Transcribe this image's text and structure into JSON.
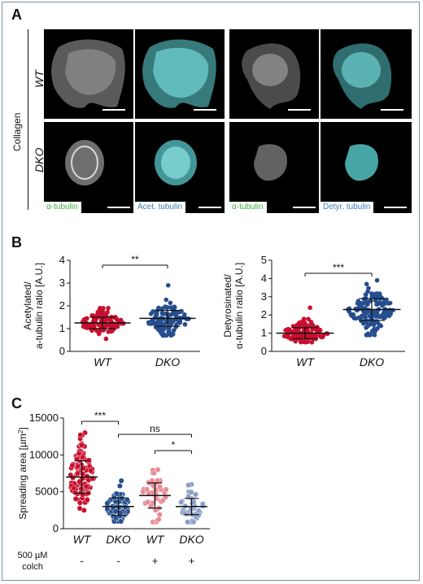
{
  "panels": {
    "a": {
      "label": "A"
    },
    "b": {
      "label": "B"
    },
    "c": {
      "label": "C"
    }
  },
  "panel_a": {
    "side_label": "Collagen",
    "row_labels": [
      "WT",
      "DKO"
    ],
    "captions": [
      "α-tubulin",
      "Acet. tubulin",
      "α-tubulin",
      "Detyr. tubulin"
    ],
    "colors": {
      "green_caption": "#3fae3f",
      "blue_caption": "#3a7fb8",
      "gray_stain": "#c9c9c9",
      "cyan_stain": "#5fd3d0"
    }
  },
  "chart_data": [
    {
      "type": "scatter",
      "id": "b-left",
      "ylabel": "Acetylated/ a-tubulin ratio [A.U.]",
      "ylabel_lines": [
        "Acetylated/",
        "a-tubulin ratio [A.U.]"
      ],
      "categories": [
        "WT",
        "DKO"
      ],
      "ylim": [
        0,
        4
      ],
      "yticks": [
        0,
        1,
        2,
        3,
        4
      ],
      "groups": [
        {
          "name": "WT",
          "color": "#c8102e",
          "mean": 1.25,
          "sd": 0.25,
          "min": 0.55,
          "max": 1.9,
          "n": 110
        },
        {
          "name": "DKO",
          "color": "#264e8f",
          "mean": 1.45,
          "sd": 0.35,
          "min": 0.7,
          "max": 2.9,
          "n": 110
        }
      ],
      "significance": [
        {
          "from": "WT",
          "to": "DKO",
          "label": "**"
        }
      ]
    },
    {
      "type": "scatter",
      "id": "b-right",
      "ylabel": "Detyrosinated/ α-tubulin ratio [A.U.]",
      "ylabel_lines": [
        "Detyrosinated/",
        "α-tubulin ratio [A.U.]"
      ],
      "categories": [
        "WT",
        "DKO"
      ],
      "ylim": [
        0,
        5
      ],
      "yticks": [
        0,
        1,
        2,
        3,
        4,
        5
      ],
      "groups": [
        {
          "name": "WT",
          "color": "#c8102e",
          "mean": 1.0,
          "sd": 0.3,
          "min": 0.5,
          "max": 2.4,
          "n": 120
        },
        {
          "name": "DKO",
          "color": "#264e8f",
          "mean": 2.3,
          "sd": 0.6,
          "min": 0.9,
          "max": 3.9,
          "n": 140
        }
      ],
      "significance": [
        {
          "from": "WT",
          "to": "DKO",
          "label": "***"
        }
      ]
    },
    {
      "type": "scatter",
      "id": "c",
      "ylabel": "Spreading area [µm²]",
      "ylabel_main": "Spreading area [µm",
      "ylabel_sup": "2",
      "ylabel_end": "]",
      "categories": [
        "WT",
        "DKO",
        "WT",
        "DKO"
      ],
      "ylim": [
        0,
        15000
      ],
      "yticks": [
        0,
        5000,
        10000,
        15000
      ],
      "groups": [
        {
          "name": "WT",
          "color": "#c8102e",
          "alpha": 1.0,
          "mean": 7000,
          "sd": 2200,
          "min": 2500,
          "max": 13000,
          "n": 110
        },
        {
          "name": "DKO",
          "color": "#264e8f",
          "alpha": 1.0,
          "mean": 3000,
          "sd": 1200,
          "min": 1000,
          "max": 6500,
          "n": 90
        },
        {
          "name": "WT",
          "color": "#e98a94",
          "alpha": 1.0,
          "mean": 4500,
          "sd": 1700,
          "min": 900,
          "max": 8000,
          "n": 45
        },
        {
          "name": "DKO",
          "color": "#8a9fc8",
          "alpha": 1.0,
          "mean": 3000,
          "sd": 1100,
          "min": 900,
          "max": 6000,
          "n": 40
        }
      ],
      "significance": [
        {
          "from": 0,
          "to": 1,
          "label": "***"
        },
        {
          "from": 1,
          "to": 3,
          "label": "ns"
        },
        {
          "from": 2,
          "to": 3,
          "label": "*"
        }
      ],
      "treatment": {
        "label_line1": "500 µM",
        "label_line2": "colch",
        "values": [
          "-",
          "-",
          "+",
          "+"
        ]
      }
    }
  ]
}
